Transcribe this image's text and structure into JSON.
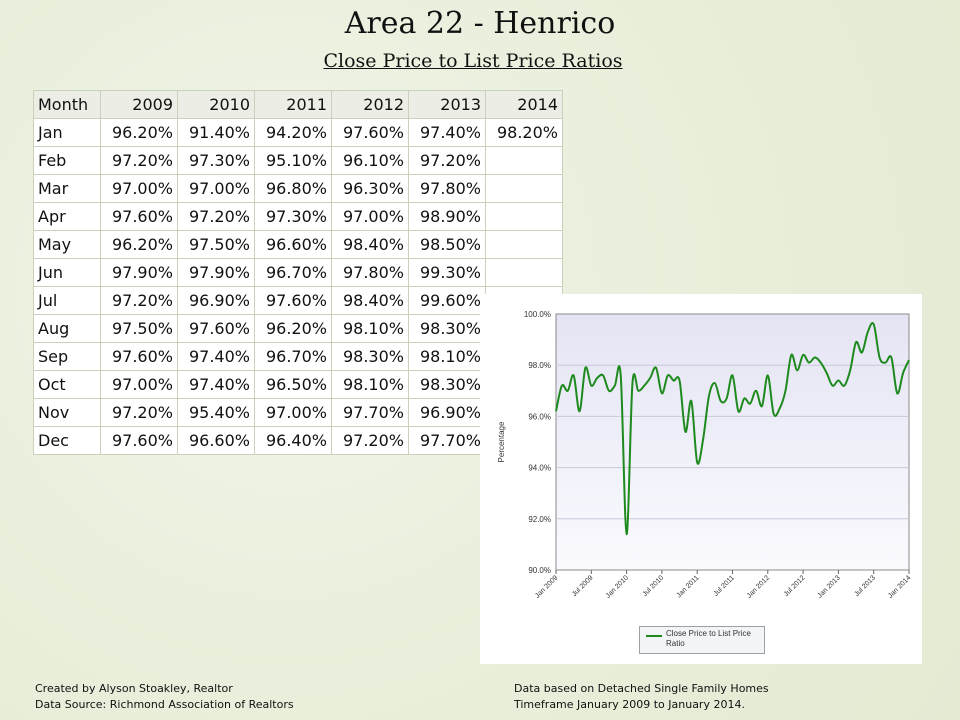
{
  "title": "Area 22 - Henrico",
  "subtitle": "Close Price to List Price Ratios",
  "table": {
    "headers": [
      "Month",
      "2009",
      "2010",
      "2011",
      "2012",
      "2013",
      "2014"
    ],
    "rows": [
      [
        "Jan",
        "96.20%",
        "91.40%",
        "94.20%",
        "97.60%",
        "97.40%",
        "98.20%"
      ],
      [
        "Feb",
        "97.20%",
        "97.30%",
        "95.10%",
        "96.10%",
        "97.20%",
        ""
      ],
      [
        "Mar",
        "97.00%",
        "97.00%",
        "96.80%",
        "96.30%",
        "97.80%",
        ""
      ],
      [
        "Apr",
        "97.60%",
        "97.20%",
        "97.30%",
        "97.00%",
        "98.90%",
        ""
      ],
      [
        "May",
        "96.20%",
        "97.50%",
        "96.60%",
        "98.40%",
        "98.50%",
        ""
      ],
      [
        "Jun",
        "97.90%",
        "97.90%",
        "96.70%",
        "97.80%",
        "99.30%",
        ""
      ],
      [
        "Jul",
        "97.20%",
        "96.90%",
        "97.60%",
        "98.40%",
        "99.60%",
        ""
      ],
      [
        "Aug",
        "97.50%",
        "97.60%",
        "96.20%",
        "98.10%",
        "98.30%",
        ""
      ],
      [
        "Sep",
        "97.60%",
        "97.40%",
        "96.70%",
        "98.30%",
        "98.10%",
        ""
      ],
      [
        "Oct",
        "97.00%",
        "97.40%",
        "96.50%",
        "98.10%",
        "98.30%",
        ""
      ],
      [
        "Nov",
        "97.20%",
        "95.40%",
        "97.00%",
        "97.70%",
        "96.90%",
        ""
      ],
      [
        "Dec",
        "97.60%",
        "96.60%",
        "96.40%",
        "97.20%",
        "97.70%",
        ""
      ]
    ]
  },
  "chart_data": {
    "type": "line",
    "title": "",
    "xlabel": "",
    "ylabel": "Percentage",
    "ylim": [
      90,
      100
    ],
    "yticks": [
      "90.0%",
      "92.0%",
      "94.0%",
      "96.0%",
      "98.0%",
      "100.0%"
    ],
    "xticks": [
      "Jan 2009",
      "Jul 2009",
      "Jan 2010",
      "Jul 2010",
      "Jan 2011",
      "Jul 2011",
      "Jan 2012",
      "Jul 2012",
      "Jan 2013",
      "Jul 2013",
      "Jan 2014"
    ],
    "grid": true,
    "legend_position": "bottom",
    "line_color": "#1e8a1e",
    "series": [
      {
        "name": "Close Price to List Price Ratio",
        "values": [
          96.2,
          97.2,
          97.0,
          97.6,
          96.2,
          97.9,
          97.2,
          97.5,
          97.6,
          97.0,
          97.2,
          97.6,
          91.4,
          97.3,
          97.0,
          97.2,
          97.5,
          97.9,
          96.9,
          97.6,
          97.4,
          97.4,
          95.4,
          96.6,
          94.2,
          95.1,
          96.8,
          97.3,
          96.6,
          96.7,
          97.6,
          96.2,
          96.7,
          96.5,
          97.0,
          96.4,
          97.6,
          96.1,
          96.3,
          97.0,
          98.4,
          97.8,
          98.4,
          98.1,
          98.3,
          98.1,
          97.7,
          97.2,
          97.4,
          97.2,
          97.8,
          98.9,
          98.5,
          99.3,
          99.6,
          98.3,
          98.1,
          98.3,
          96.9,
          97.7,
          98.2
        ]
      }
    ]
  },
  "legend_text": "Close Price to List Price Ratio",
  "footer_left": [
    "Created by Alyson Stoakley, Realtor",
    "Data Source: Richmond Association of Realtors"
  ],
  "footer_right": [
    "Data based on Detached Single Family Homes",
    "Timeframe January 2009 to January 2014."
  ]
}
